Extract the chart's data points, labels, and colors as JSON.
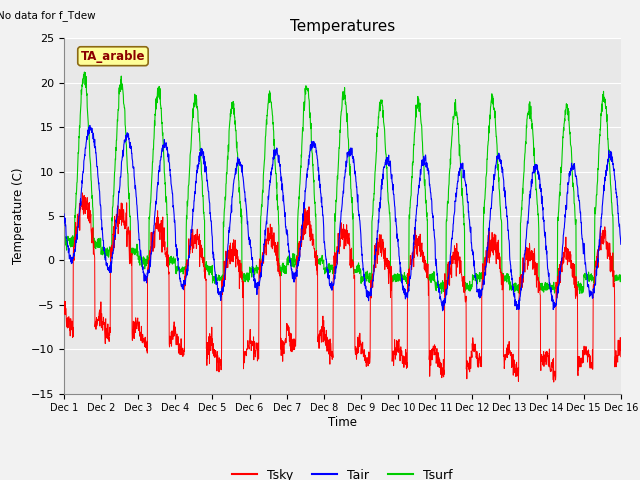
{
  "title": "Temperatures",
  "xlabel": "Time",
  "ylabel": "Temperature (C)",
  "top_left_text": "No data for f_Tdew",
  "legend_box_text": "TA_arable",
  "ylim": [
    -15,
    25
  ],
  "yticks": [
    -15,
    -10,
    -5,
    0,
    5,
    10,
    15,
    20,
    25
  ],
  "xtick_labels": [
    "Dec 1",
    "Dec 2",
    "Dec 3",
    "Dec 4",
    "Dec 5",
    "Dec 6",
    "Dec 7",
    "Dec 8",
    "Dec 9",
    "Dec 10",
    "Dec 11",
    "Dec 12",
    "Dec 13",
    "Dec 14",
    "Dec 15",
    "Dec 16"
  ],
  "n_days": 15,
  "points_per_day": 144,
  "color_tsky": "#FF0000",
  "color_tair": "#0000FF",
  "color_tsurf": "#00CC00",
  "fig_bg_color": "#F2F2F2",
  "ax_bg_color": "#E8E8E8",
  "legend_entries": [
    "Tsky",
    "Tair",
    "Tsurf"
  ]
}
